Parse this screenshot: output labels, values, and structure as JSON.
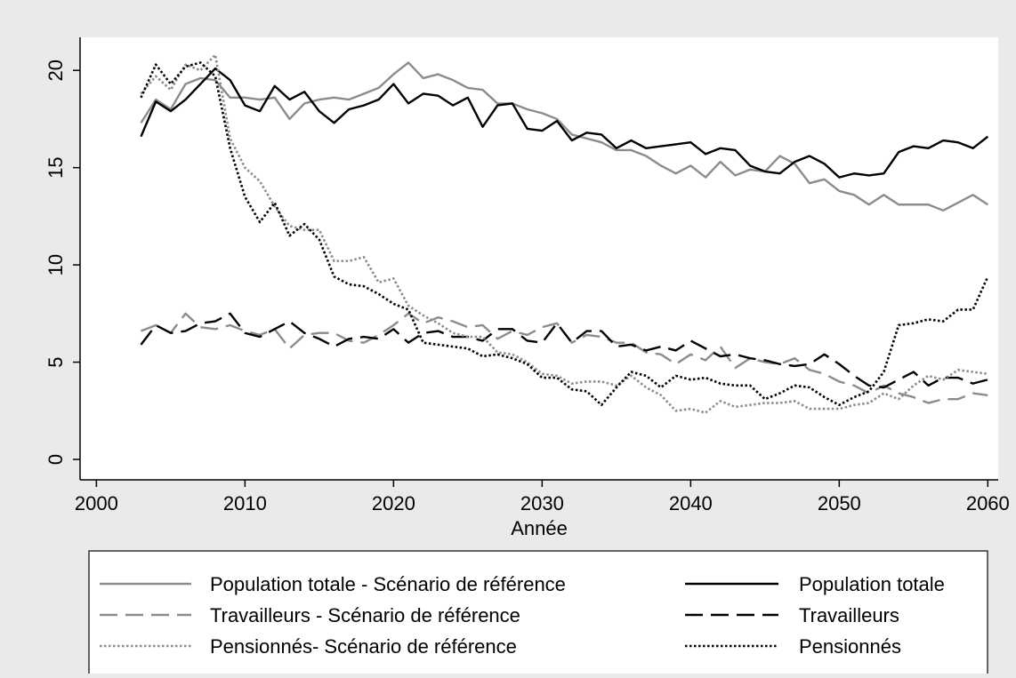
{
  "chart_data": {
    "type": "line",
    "x_label": "Année",
    "x": [
      2003,
      2004,
      2005,
      2006,
      2007,
      2008,
      2009,
      2010,
      2011,
      2012,
      2013,
      2014,
      2015,
      2016,
      2017,
      2018,
      2019,
      2020,
      2021,
      2022,
      2023,
      2024,
      2025,
      2026,
      2027,
      2028,
      2029,
      2030,
      2031,
      2032,
      2033,
      2034,
      2035,
      2036,
      2037,
      2038,
      2039,
      2040,
      2041,
      2042,
      2043,
      2044,
      2045,
      2046,
      2047,
      2048,
      2049,
      2050,
      2051,
      2052,
      2053,
      2054,
      2055,
      2056,
      2057,
      2058,
      2059,
      2060
    ],
    "xlim": [
      1998.9,
      2060.7
    ],
    "xticks": [
      2000,
      2010,
      2020,
      2030,
      2040,
      2050,
      2060
    ],
    "ylim": [
      -1.05,
      21.7
    ],
    "yticks": [
      0,
      5,
      10,
      15,
      20
    ],
    "series": [
      {
        "name": "Population totale - Scénario de référence",
        "color": "#8c8c8c",
        "style": "solid",
        "values": [
          17.3,
          18.5,
          18.0,
          19.3,
          19.6,
          19.5,
          18.6,
          18.6,
          18.5,
          18.6,
          17.5,
          18.3,
          18.5,
          18.6,
          18.5,
          18.8,
          19.1,
          19.8,
          20.4,
          19.6,
          19.8,
          19.5,
          19.1,
          19.0,
          18.3,
          18.3,
          18.0,
          17.8,
          17.5,
          16.7,
          16.5,
          16.3,
          15.9,
          15.9,
          15.6,
          15.1,
          14.7,
          15.1,
          14.5,
          15.3,
          14.6,
          14.9,
          14.8,
          15.6,
          15.2,
          14.2,
          14.4,
          13.8,
          13.6,
          13.1,
          13.6,
          13.1,
          13.1,
          13.1,
          12.8,
          13.2,
          13.6,
          13.1
        ]
      },
      {
        "name": "Population totale",
        "color": "#000000",
        "style": "solid",
        "values": [
          16.6,
          18.4,
          17.9,
          18.5,
          19.3,
          20.1,
          19.5,
          18.2,
          17.9,
          19.2,
          18.5,
          18.9,
          17.9,
          17.3,
          18.0,
          18.2,
          18.5,
          19.3,
          18.3,
          18.8,
          18.7,
          18.2,
          18.6,
          17.1,
          18.2,
          18.3,
          17.0,
          16.9,
          17.4,
          16.4,
          16.8,
          16.7,
          16.0,
          16.4,
          16.0,
          16.1,
          16.2,
          16.3,
          15.7,
          16.0,
          15.9,
          15.1,
          14.8,
          14.7,
          15.3,
          15.6,
          15.2,
          14.5,
          14.7,
          14.6,
          14.7,
          15.8,
          16.1,
          16.0,
          16.4,
          16.3,
          16.0,
          16.6
        ]
      },
      {
        "name": "Travailleurs - Scénario de référence",
        "color": "#8c8c8c",
        "style": "dashed",
        "values": [
          6.6,
          6.9,
          6.5,
          7.5,
          6.8,
          6.7,
          6.9,
          6.6,
          6.4,
          6.7,
          5.7,
          6.4,
          6.5,
          6.5,
          6.1,
          6.0,
          6.4,
          6.9,
          7.5,
          7.0,
          7.3,
          7.1,
          6.8,
          6.9,
          6.2,
          6.6,
          6.4,
          6.8,
          7.0,
          6.0,
          6.4,
          6.3,
          6.0,
          6.0,
          5.5,
          5.4,
          4.9,
          5.4,
          5.1,
          5.8,
          4.7,
          5.2,
          5.0,
          4.9,
          5.2,
          4.6,
          4.4,
          4.0,
          3.8,
          3.4,
          3.8,
          3.4,
          3.2,
          2.9,
          3.1,
          3.1,
          3.4,
          3.3
        ]
      },
      {
        "name": "Travailleurs",
        "color": "#000000",
        "style": "dashed",
        "values": [
          5.9,
          6.9,
          6.5,
          6.6,
          7.0,
          7.1,
          7.5,
          6.5,
          6.3,
          6.7,
          7.1,
          6.5,
          6.2,
          5.8,
          6.2,
          6.3,
          6.2,
          6.7,
          6.0,
          6.5,
          6.6,
          6.3,
          6.3,
          6.1,
          6.7,
          6.7,
          6.1,
          6.0,
          7.0,
          6.0,
          6.6,
          6.6,
          5.8,
          5.9,
          5.6,
          5.8,
          5.6,
          6.1,
          5.7,
          5.3,
          5.4,
          5.2,
          5.1,
          4.9,
          4.8,
          4.9,
          5.4,
          4.9,
          4.3,
          3.8,
          3.7,
          4.1,
          4.5,
          3.8,
          4.2,
          4.2,
          3.9,
          4.1
        ]
      },
      {
        "name": "Pensionnés- Scénario de référence",
        "color": "#8c8c8c",
        "style": "dotted",
        "values": [
          18.8,
          19.7,
          19.0,
          20.3,
          20.0,
          20.8,
          16.5,
          15.0,
          14.3,
          13.0,
          12.0,
          11.8,
          11.8,
          10.2,
          10.2,
          10.4,
          9.1,
          9.3,
          7.9,
          7.4,
          7.0,
          6.5,
          6.3,
          6.3,
          5.5,
          5.4,
          5.0,
          4.4,
          4.3,
          3.9,
          4.0,
          4.0,
          3.8,
          4.3,
          3.7,
          3.3,
          2.5,
          2.6,
          2.4,
          3.0,
          2.7,
          2.8,
          2.9,
          2.9,
          3.0,
          2.6,
          2.6,
          2.6,
          2.8,
          2.9,
          3.4,
          3.1,
          3.8,
          4.3,
          4.1,
          4.6,
          4.5,
          4.4
        ]
      },
      {
        "name": "Pensionnés",
        "color": "#000000",
        "style": "dotted",
        "values": [
          18.6,
          20.3,
          19.3,
          20.2,
          20.4,
          19.7,
          16.0,
          13.5,
          12.2,
          13.2,
          11.5,
          12.1,
          11.3,
          9.4,
          9.0,
          8.9,
          8.5,
          8.0,
          7.7,
          6.0,
          5.9,
          5.8,
          5.7,
          5.3,
          5.4,
          5.2,
          4.9,
          4.2,
          4.2,
          3.6,
          3.5,
          2.8,
          3.7,
          4.5,
          4.3,
          3.7,
          4.3,
          4.1,
          4.2,
          3.9,
          3.8,
          3.8,
          3.1,
          3.4,
          3.8,
          3.7,
          3.2,
          2.8,
          3.2,
          3.5,
          4.5,
          6.9,
          7.0,
          7.2,
          7.1,
          7.7,
          7.7,
          9.4
        ]
      }
    ]
  }
}
